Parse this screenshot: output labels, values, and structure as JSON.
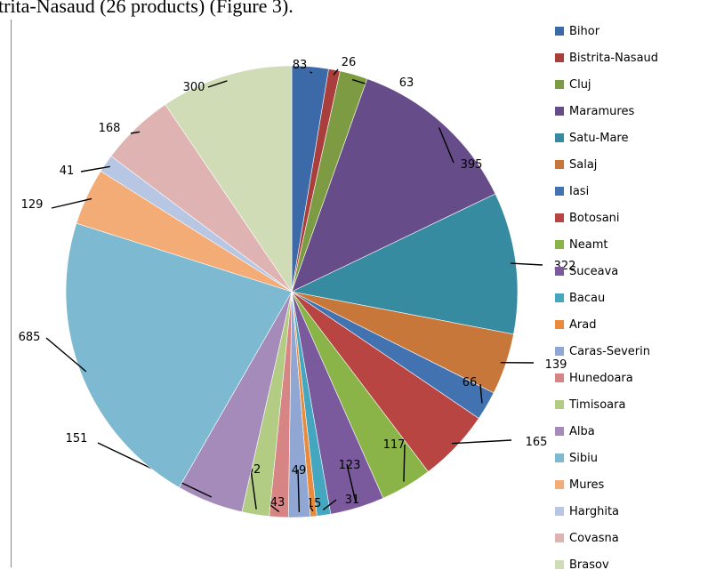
{
  "header": {
    "text": "trita-Nasaud (26 products) (Figure 3)."
  },
  "chart_data": {
    "type": "pie",
    "categories": [
      "Bihor",
      "Bistrita-Nasaud",
      "Cluj",
      "Maramures",
      "Satu-Mare",
      "Salaj",
      "Iasi",
      "Botosani",
      "Neamt",
      "Suceava",
      "Bacau",
      "Arad",
      "Caras-Severin",
      "Hunedoara",
      "Timisoara",
      "Alba",
      "Sibiu",
      "Mures",
      "Harghita",
      "Covasna",
      "Brasov"
    ],
    "values": [
      83,
      26,
      63,
      395,
      322,
      139,
      66,
      165,
      117,
      123,
      31,
      15,
      49,
      43,
      62,
      151,
      685,
      129,
      41,
      168,
      300
    ],
    "colors": [
      "#3c6aa8",
      "#a83f3d",
      "#7d9b42",
      "#664c88",
      "#378ba0",
      "#c8773a",
      "#4272b0",
      "#b84542",
      "#8ab447",
      "#7a5a9c",
      "#45a7bf",
      "#e98a3c",
      "#8fa7d2",
      "#d68584",
      "#b3cc84",
      "#a58bba",
      "#7db9d0",
      "#f4ac77",
      "#b7c7e3",
      "#e0b3b3",
      "#cfdcb5"
    ],
    "legend_position": "right"
  }
}
